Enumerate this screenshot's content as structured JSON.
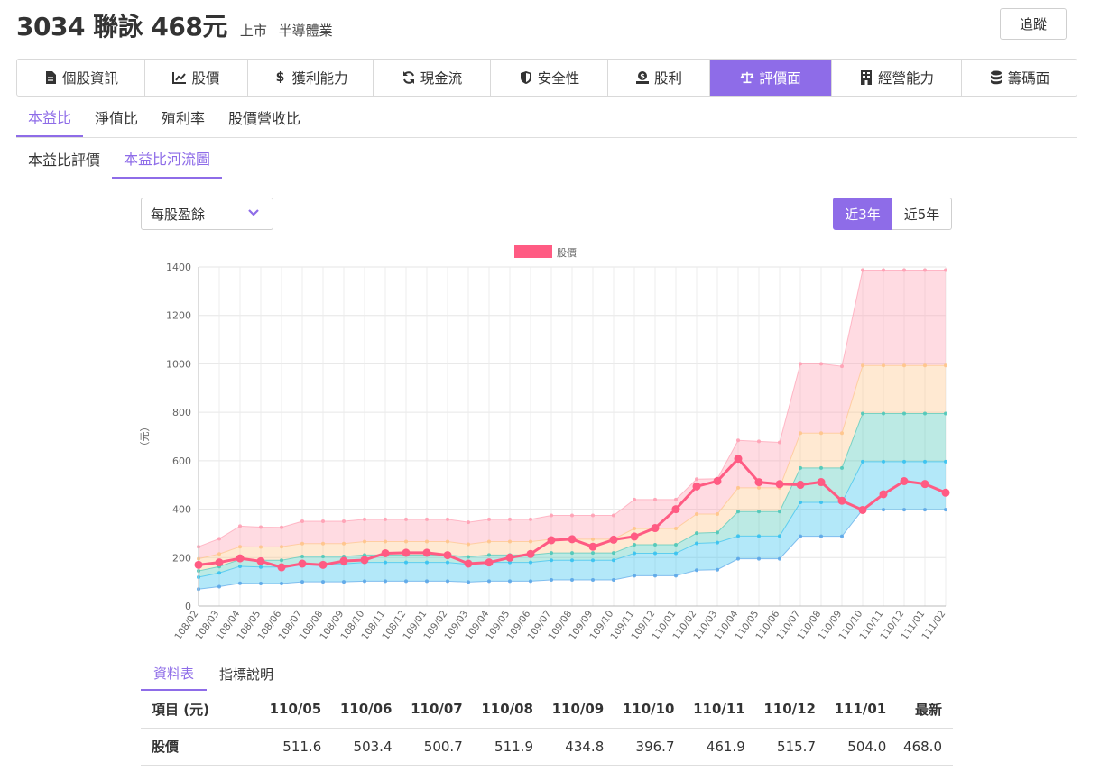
{
  "stock": {
    "title": "3034 聯詠 468元",
    "market": "上市",
    "industry": "半導體業"
  },
  "header": {
    "track_label": "追蹤"
  },
  "main_tabs": [
    {
      "label": "個股資訊",
      "icon": "file-icon"
    },
    {
      "label": "股價",
      "icon": "chart-line-icon"
    },
    {
      "label": "獲利能力",
      "icon": "dollar-icon"
    },
    {
      "label": "現金流",
      "icon": "sync-icon"
    },
    {
      "label": "安全性",
      "icon": "shield-icon"
    },
    {
      "label": "股利",
      "icon": "money-icon"
    },
    {
      "label": "評價面",
      "icon": "balance-scale-icon",
      "active": true
    },
    {
      "label": "經營能力",
      "icon": "building-icon"
    },
    {
      "label": "籌碼面",
      "icon": "database-icon"
    }
  ],
  "sub_tabs": [
    "本益比",
    "淨值比",
    "殖利率",
    "股價營收比"
  ],
  "sub_tabs2": [
    "本益比評價",
    "本益比河流圖"
  ],
  "select": {
    "value": "每股盈餘"
  },
  "range": {
    "left": "近3年",
    "right": "近5年"
  },
  "colors": {
    "accent": "#8e6ce8",
    "price": "#ff5b83"
  },
  "chart_data": {
    "type": "line",
    "legend": "股價",
    "ylabel": "（元）",
    "ylim": [
      0,
      1400
    ],
    "yticks": [
      0,
      200,
      400,
      600,
      800,
      1000,
      1200,
      1400
    ],
    "x": [
      "108/02",
      "108/03",
      "108/04",
      "108/05",
      "108/06",
      "108/07",
      "108/08",
      "108/09",
      "108/10",
      "108/11",
      "108/12",
      "109/01",
      "109/02",
      "109/03",
      "109/04",
      "109/05",
      "109/06",
      "109/07",
      "109/08",
      "109/09",
      "109/10",
      "109/11",
      "109/12",
      "110/01",
      "110/02",
      "110/03",
      "110/04",
      "110/05",
      "110/06",
      "110/07",
      "110/08",
      "110/09",
      "110/10",
      "110/11",
      "110/12",
      "111/01",
      "111/02"
    ],
    "price": [
      170,
      180,
      197,
      185,
      160,
      175,
      170,
      186,
      190,
      218,
      220,
      220,
      210,
      175,
      180,
      200,
      215,
      272,
      276,
      245,
      274,
      287,
      322,
      400,
      494,
      516,
      608,
      511.6,
      503.4,
      500.7,
      511.9,
      434.8,
      396.7,
      461.9,
      515.7,
      504.0,
      468.0
    ],
    "bands": [
      {
        "name": "band-1",
        "color": "#5ba6e8",
        "values": [
          70,
          80,
          94,
          93,
          93,
          100,
          100,
          100,
          103,
          103,
          103,
          103,
          103,
          99,
          103,
          103,
          103,
          108,
          108,
          108,
          108,
          125,
          125,
          125,
          148,
          150,
          195,
          195,
          195,
          288,
          288,
          288,
          398,
          398,
          398,
          398,
          398
        ]
      },
      {
        "name": "band-2",
        "color": "#37c2f0",
        "values": [
          119,
          137,
          164,
          161,
          161,
          175,
          174,
          174,
          180,
          180,
          180,
          180,
          180,
          172,
          180,
          180,
          180,
          189,
          189,
          189,
          189,
          218,
          218,
          218,
          259,
          262,
          289,
          289,
          289,
          428,
          428,
          428,
          596,
          596,
          596,
          596,
          596
        ]
      },
      {
        "name": "band-3",
        "color": "#4fc8b8",
        "values": [
          145,
          163,
          192,
          189,
          189,
          205,
          205,
          205,
          211,
          211,
          211,
          211,
          211,
          203,
          211,
          211,
          211,
          219,
          219,
          219,
          219,
          253,
          253,
          253,
          301,
          304,
          390,
          390,
          390,
          570,
          570,
          570,
          795,
          795,
          795,
          795,
          795
        ]
      },
      {
        "name": "band-4",
        "color": "#ffc48a",
        "values": [
          195,
          215,
          245,
          244,
          245,
          258,
          258,
          258,
          266,
          266,
          266,
          266,
          266,
          255,
          266,
          266,
          266,
          276,
          276,
          276,
          276,
          320,
          320,
          320,
          380,
          380,
          488,
          488,
          488,
          714,
          714,
          714,
          993,
          993,
          993,
          993,
          993
        ]
      },
      {
        "name": "band-5",
        "color": "#ffa0b4",
        "values": [
          245,
          278,
          330,
          326,
          325,
          350,
          350,
          350,
          358,
          358,
          358,
          358,
          358,
          346,
          358,
          358,
          358,
          374,
          374,
          374,
          374,
          440,
          440,
          440,
          524,
          526,
          684,
          680,
          676,
          1000,
          1000,
          990,
          1387,
          1387,
          1387,
          1387,
          1387
        ]
      }
    ]
  },
  "data_tabs": [
    "資料表",
    "指標說明"
  ],
  "table": {
    "head": "項目 (元)",
    "columns": [
      "110/05",
      "110/06",
      "110/07",
      "110/08",
      "110/09",
      "110/10",
      "110/11",
      "110/12",
      "111/01",
      "最新"
    ],
    "rows": [
      {
        "label": "股價",
        "values": [
          "511.6",
          "503.4",
          "500.7",
          "511.9",
          "434.8",
          "396.7",
          "461.9",
          "515.7",
          "504.0",
          "468.0"
        ]
      }
    ]
  }
}
